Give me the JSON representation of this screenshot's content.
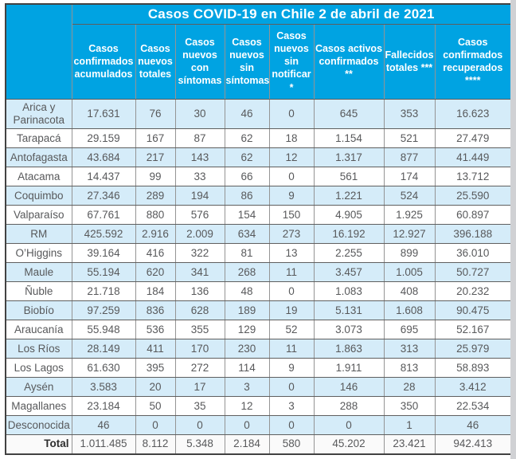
{
  "title": "Casos COVID-19 en Chile 2 de abril de 2021",
  "colors": {
    "header_bg": "#00a3e2",
    "header_text": "#ffffff",
    "stripe_bg": "#d5ecf9",
    "row_bg": "#ffffff",
    "total_bg": "#fafafa",
    "data_text": "#58595b",
    "total_text": "#2e2e2e",
    "grid_v": "#949494",
    "grid_h": "#5f5f5f",
    "outer_border": "#424242",
    "scroll_track": "#d0d1d4"
  },
  "chart_data": {
    "type": "table",
    "title": "Casos COVID-19 en Chile 2 de abril de 2021",
    "region_column_label": "",
    "columns": [
      "Casos confirmados acumulados",
      "Casos nuevos totales",
      "Casos nuevos con síntomas",
      "Casos nuevos sin síntomas",
      "Casos nuevos sin notificar *",
      "Casos activos confirmados **",
      "Fallecidos totales ***",
      "Casos confirmados recuperados ****"
    ],
    "rows": [
      {
        "region": "Arica y Parinacota",
        "values": [
          "17.631",
          "76",
          "30",
          "46",
          "0",
          "645",
          "353",
          "16.623"
        ]
      },
      {
        "region": "Tarapacá",
        "values": [
          "29.159",
          "167",
          "87",
          "62",
          "18",
          "1.154",
          "521",
          "27.479"
        ]
      },
      {
        "region": "Antofagasta",
        "values": [
          "43.684",
          "217",
          "143",
          "62",
          "12",
          "1.317",
          "877",
          "41.449"
        ]
      },
      {
        "region": "Atacama",
        "values": [
          "14.437",
          "99",
          "33",
          "66",
          "0",
          "561",
          "174",
          "13.712"
        ]
      },
      {
        "region": "Coquimbo",
        "values": [
          "27.346",
          "289",
          "194",
          "86",
          "9",
          "1.221",
          "524",
          "25.590"
        ]
      },
      {
        "region": "Valparaíso",
        "values": [
          "67.761",
          "880",
          "576",
          "154",
          "150",
          "4.905",
          "1.925",
          "60.897"
        ]
      },
      {
        "region": "RM",
        "values": [
          "425.592",
          "2.916",
          "2.009",
          "634",
          "273",
          "16.192",
          "12.927",
          "396.188"
        ]
      },
      {
        "region": "O’Higgins",
        "values": [
          "39.164",
          "416",
          "322",
          "81",
          "13",
          "2.255",
          "899",
          "36.010"
        ]
      },
      {
        "region": "Maule",
        "values": [
          "55.194",
          "620",
          "341",
          "268",
          "11",
          "3.457",
          "1.005",
          "50.727"
        ]
      },
      {
        "region": "Ñuble",
        "values": [
          "21.718",
          "184",
          "136",
          "48",
          "0",
          "1.083",
          "408",
          "20.232"
        ]
      },
      {
        "region": "Biobío",
        "values": [
          "97.259",
          "836",
          "628",
          "189",
          "19",
          "5.131",
          "1.608",
          "90.475"
        ]
      },
      {
        "region": "Araucanía",
        "values": [
          "55.948",
          "536",
          "355",
          "129",
          "52",
          "3.073",
          "695",
          "52.167"
        ]
      },
      {
        "region": "Los Ríos",
        "values": [
          "28.149",
          "411",
          "170",
          "230",
          "11",
          "1.863",
          "313",
          "25.979"
        ]
      },
      {
        "region": "Los Lagos",
        "values": [
          "61.630",
          "395",
          "272",
          "114",
          "9",
          "1.911",
          "813",
          "58.893"
        ]
      },
      {
        "region": "Aysén",
        "values": [
          "3.583",
          "20",
          "17",
          "3",
          "0",
          "146",
          "28",
          "3.412"
        ]
      },
      {
        "region": "Magallanes",
        "values": [
          "23.184",
          "50",
          "35",
          "12",
          "3",
          "288",
          "350",
          "22.534"
        ]
      },
      {
        "region": "Desconocida",
        "values": [
          "46",
          "0",
          "0",
          "0",
          "0",
          "0",
          "1",
          "46"
        ]
      },
      {
        "region": "Total",
        "is_total": true,
        "values": [
          "1.011.485",
          "8.112",
          "5.348",
          "2.184",
          "580",
          "45.202",
          "23.421",
          "942.413"
        ]
      }
    ]
  }
}
